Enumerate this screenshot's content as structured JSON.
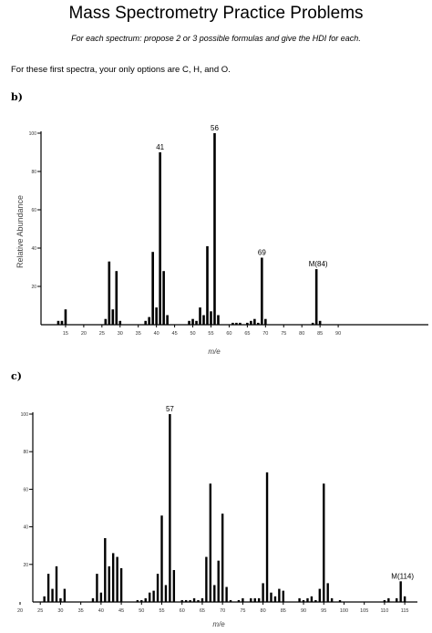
{
  "title": "Mass Spectrometry Practice Problems",
  "subtitle": "For each spectrum: propose 2 or 3 possible formulas and give the HDI for each.",
  "note": "For these first spectra, your only options are C, H, and O.",
  "chart_data": [
    {
      "type": "bar",
      "panel_label": "b)",
      "ylabel": "Relative Abundance",
      "xlabel": "m/e",
      "xlim": [
        10,
        98
      ],
      "ylim": [
        0,
        100
      ],
      "x_ticks": [
        15,
        20,
        25,
        30,
        35,
        40,
        45,
        50,
        55,
        60,
        65,
        70,
        75,
        80,
        85,
        90
      ],
      "y_ticks": [
        20,
        40,
        60,
        80,
        100
      ],
      "x": [
        13,
        14,
        15,
        26,
        27,
        28,
        29,
        30,
        37,
        38,
        39,
        40,
        41,
        42,
        43,
        49,
        50,
        51,
        52,
        53,
        54,
        55,
        56,
        57,
        61,
        62,
        63,
        65,
        66,
        67,
        68,
        69,
        70,
        83,
        84,
        85
      ],
      "values": [
        2,
        2,
        8,
        3,
        33,
        8,
        28,
        2,
        2,
        4,
        38,
        9,
        90,
        28,
        5,
        2,
        3,
        2,
        9,
        5,
        41,
        7,
        100,
        5,
        1,
        1,
        1,
        1,
        2,
        3,
        1,
        35,
        3,
        1,
        29,
        2
      ],
      "peak_labels": [
        {
          "x": 41,
          "text": "41"
        },
        {
          "x": 56,
          "text": "56"
        },
        {
          "x": 69,
          "text": "69"
        },
        {
          "x": 84,
          "text": "M(84)"
        }
      ]
    },
    {
      "type": "bar",
      "panel_label": "c)",
      "ylabel": "",
      "xlabel": "m/e",
      "xlim": [
        20,
        117
      ],
      "ylim": [
        0,
        100
      ],
      "x_ticks": [
        20,
        25,
        30,
        35,
        40,
        45,
        50,
        55,
        60,
        65,
        70,
        75,
        80,
        85,
        90,
        95,
        100,
        105,
        110,
        115
      ],
      "y_ticks": [
        20,
        40,
        60,
        80,
        100
      ],
      "x": [
        26,
        27,
        28,
        29,
        30,
        31,
        38,
        39,
        40,
        41,
        42,
        43,
        44,
        45,
        49,
        50,
        51,
        52,
        53,
        54,
        55,
        56,
        57,
        58,
        60,
        61,
        62,
        63,
        64,
        65,
        66,
        67,
        68,
        69,
        70,
        71,
        72,
        74,
        75,
        77,
        78,
        79,
        80,
        81,
        82,
        83,
        84,
        85,
        89,
        90,
        91,
        92,
        93,
        94,
        95,
        96,
        97,
        99,
        110,
        111,
        113,
        114,
        115
      ],
      "values": [
        3,
        15,
        7,
        19,
        2,
        7,
        2,
        15,
        5,
        34,
        19,
        26,
        24,
        18,
        1,
        1,
        2,
        5,
        6,
        15,
        46,
        9,
        100,
        17,
        1,
        1,
        1,
        2,
        1,
        2,
        24,
        63,
        9,
        22,
        47,
        8,
        1,
        1,
        2,
        2,
        2,
        2,
        10,
        69,
        5,
        3,
        7,
        6,
        2,
        1,
        2,
        3,
        1,
        7,
        63,
        10,
        2,
        1,
        1,
        2,
        2,
        11,
        3
      ],
      "peak_labels": [
        {
          "x": 57,
          "text": "57"
        },
        {
          "x": 114,
          "text": "M(114)"
        }
      ]
    }
  ]
}
